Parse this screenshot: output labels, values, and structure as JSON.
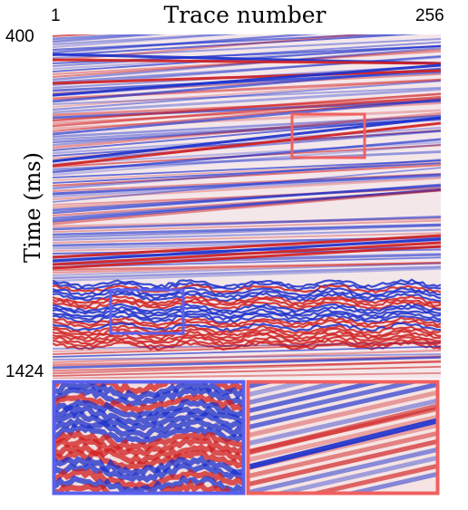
{
  "title": "Trace number",
  "x_axis": {
    "first_trace": "1",
    "last_trace": "256"
  },
  "y_axis": {
    "label": "Time (ms)",
    "start": "400",
    "end": "1424"
  },
  "colors": {
    "red_highlight": "#f06060",
    "blue_highlight": "#5a60ee",
    "positive_amplitude": "#d01e1e",
    "negative_amplitude": "#1a2fcc"
  },
  "colormap": "seismic (blue-white-red)"
}
